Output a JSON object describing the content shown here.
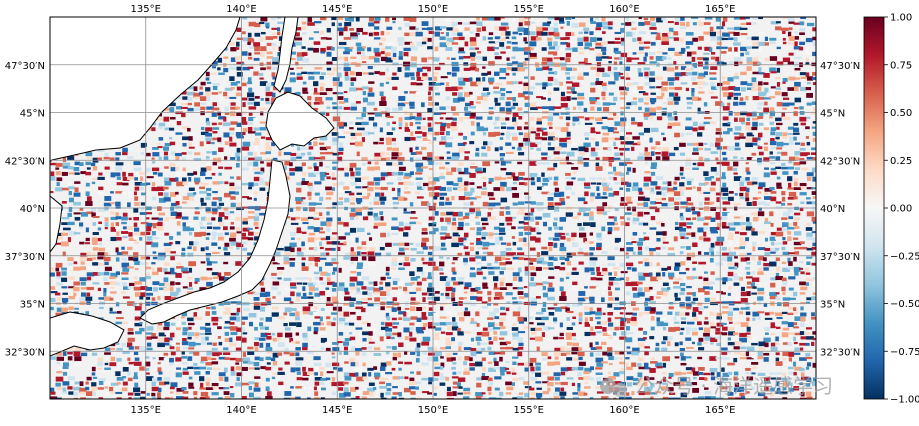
{
  "map": {
    "lon_ticks": [
      "135°E",
      "140°E",
      "145°E",
      "150°E",
      "155°E",
      "160°E",
      "165°E"
    ],
    "lat_ticks": [
      "47°30′N",
      "45°N",
      "42°30′N",
      "40°N",
      "37°30′N",
      "35°N",
      "32°30′N"
    ],
    "lon_range": [
      130,
      170
    ],
    "lat_range": [
      30,
      50
    ],
    "grid": true,
    "colormap": "RdBu_r",
    "land_color": "#ffffff",
    "coastline_color": "#000000"
  },
  "colorbar": {
    "ticks": [
      "1.00",
      "0.75",
      "0.50",
      "0.25",
      "0.00",
      "−0.25",
      "−0.50",
      "−0.75",
      "−1.00"
    ],
    "range": [
      -1,
      1
    ],
    "colors": [
      "#053061",
      "#2166ac",
      "#4393c3",
      "#92c5de",
      "#d1e5f0",
      "#f7f7f7",
      "#fddbc7",
      "#f4a582",
      "#d6604d",
      "#b2182b",
      "#67001f"
    ]
  },
  "watermark": {
    "text": "公众号 · 海洋遥感学习",
    "icon": "wechat-icon"
  }
}
